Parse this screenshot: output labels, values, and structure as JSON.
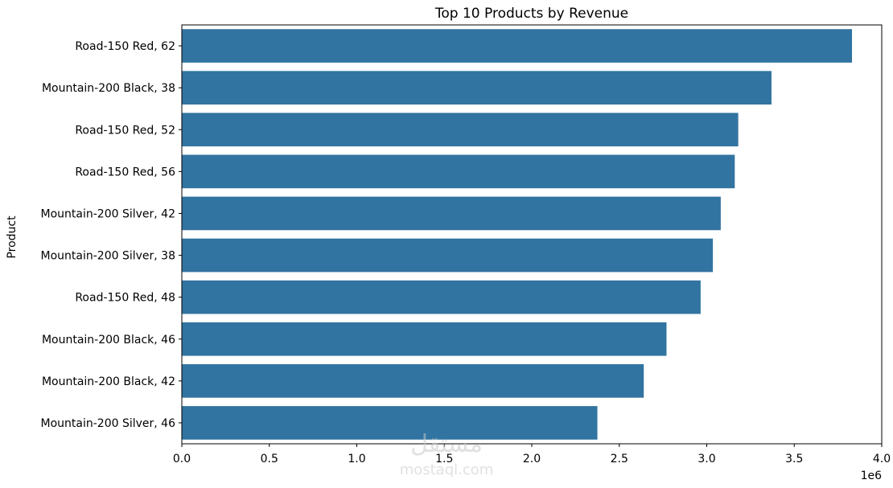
{
  "chart_data": {
    "type": "bar",
    "orientation": "horizontal",
    "title": "Top 10 Products by Revenue",
    "ylabel": "Product",
    "xlabel": "",
    "x_offset_label": "1e6",
    "categories": [
      "Road-150 Red, 62",
      "Mountain-200 Black, 38",
      "Road-150 Red, 52",
      "Road-150 Red, 56",
      "Mountain-200 Silver, 42",
      "Mountain-200 Silver, 38",
      "Road-150 Red, 48",
      "Mountain-200 Black, 46",
      "Mountain-200 Black, 42",
      "Mountain-200 Silver, 46"
    ],
    "values": [
      3830000,
      3370000,
      3180000,
      3160000,
      3080000,
      3035000,
      2965000,
      2770000,
      2640000,
      2375000
    ],
    "xlim": [
      0,
      4000000
    ],
    "xticks": [
      0,
      500000,
      1000000,
      1500000,
      2000000,
      2500000,
      3000000,
      3500000,
      4000000
    ],
    "xtick_labels": [
      "0.0",
      "0.5",
      "1.0",
      "1.5",
      "2.0",
      "2.5",
      "3.0",
      "3.5",
      "4.0"
    ],
    "bar_color": "#3274a1",
    "grid": false,
    "legend": "none"
  },
  "watermark": {
    "arabic_text": "مستقل",
    "latin_text": "mostaql.com"
  }
}
